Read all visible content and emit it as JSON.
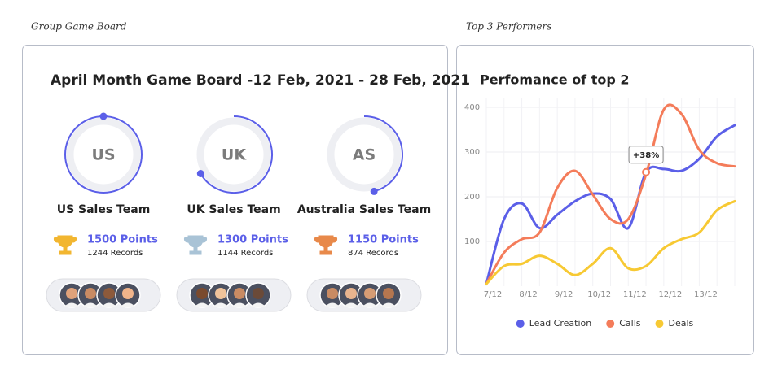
{
  "header": {
    "left": "Group Game Board",
    "right": "Top 3 Performers"
  },
  "board": {
    "title": "April Month Game Board -12 Feb, 2021 - 28 Feb, 2021",
    "teams": [
      {
        "initials": "US",
        "name": "US Sales Team",
        "points": "1500 Points",
        "records": "1244 Records"
      },
      {
        "initials": "UK",
        "name": "UK Sales Team",
        "points": "1300 Points",
        "records": "1144 Records"
      },
      {
        "initials": "AS",
        "name": "Australia Sales Team",
        "points": "1150 Points",
        "records": "874 Records"
      }
    ]
  },
  "chart_data": {
    "type": "line",
    "title": "Perfomance of top 2",
    "categories": [
      "7/12",
      null,
      "8/12",
      null,
      "9/12",
      null,
      "10/12",
      null,
      "11/12",
      null,
      "12/12",
      null,
      "13/12",
      null,
      null
    ],
    "series": [
      {
        "name": "Lead Creation",
        "color": "#5b5fe8",
        "values": [
          5,
          150,
          185,
          130,
          160,
          190,
          207,
          195,
          130,
          255,
          262,
          258,
          285,
          335,
          360
        ]
      },
      {
        "name": "Calls",
        "color": "#f47c5a",
        "values": [
          5,
          75,
          105,
          120,
          220,
          258,
          205,
          150,
          150,
          250,
          395,
          385,
          305,
          275,
          268
        ]
      },
      {
        "name": "Deals",
        "color": "#f7c933",
        "values": [
          5,
          45,
          50,
          68,
          50,
          25,
          50,
          85,
          40,
          45,
          85,
          105,
          120,
          170,
          190
        ]
      }
    ],
    "ylim": [
      0,
      420
    ],
    "yticks": [
      100,
      200,
      300,
      400
    ],
    "grid": true,
    "annotations": [
      "+38%"
    ]
  }
}
